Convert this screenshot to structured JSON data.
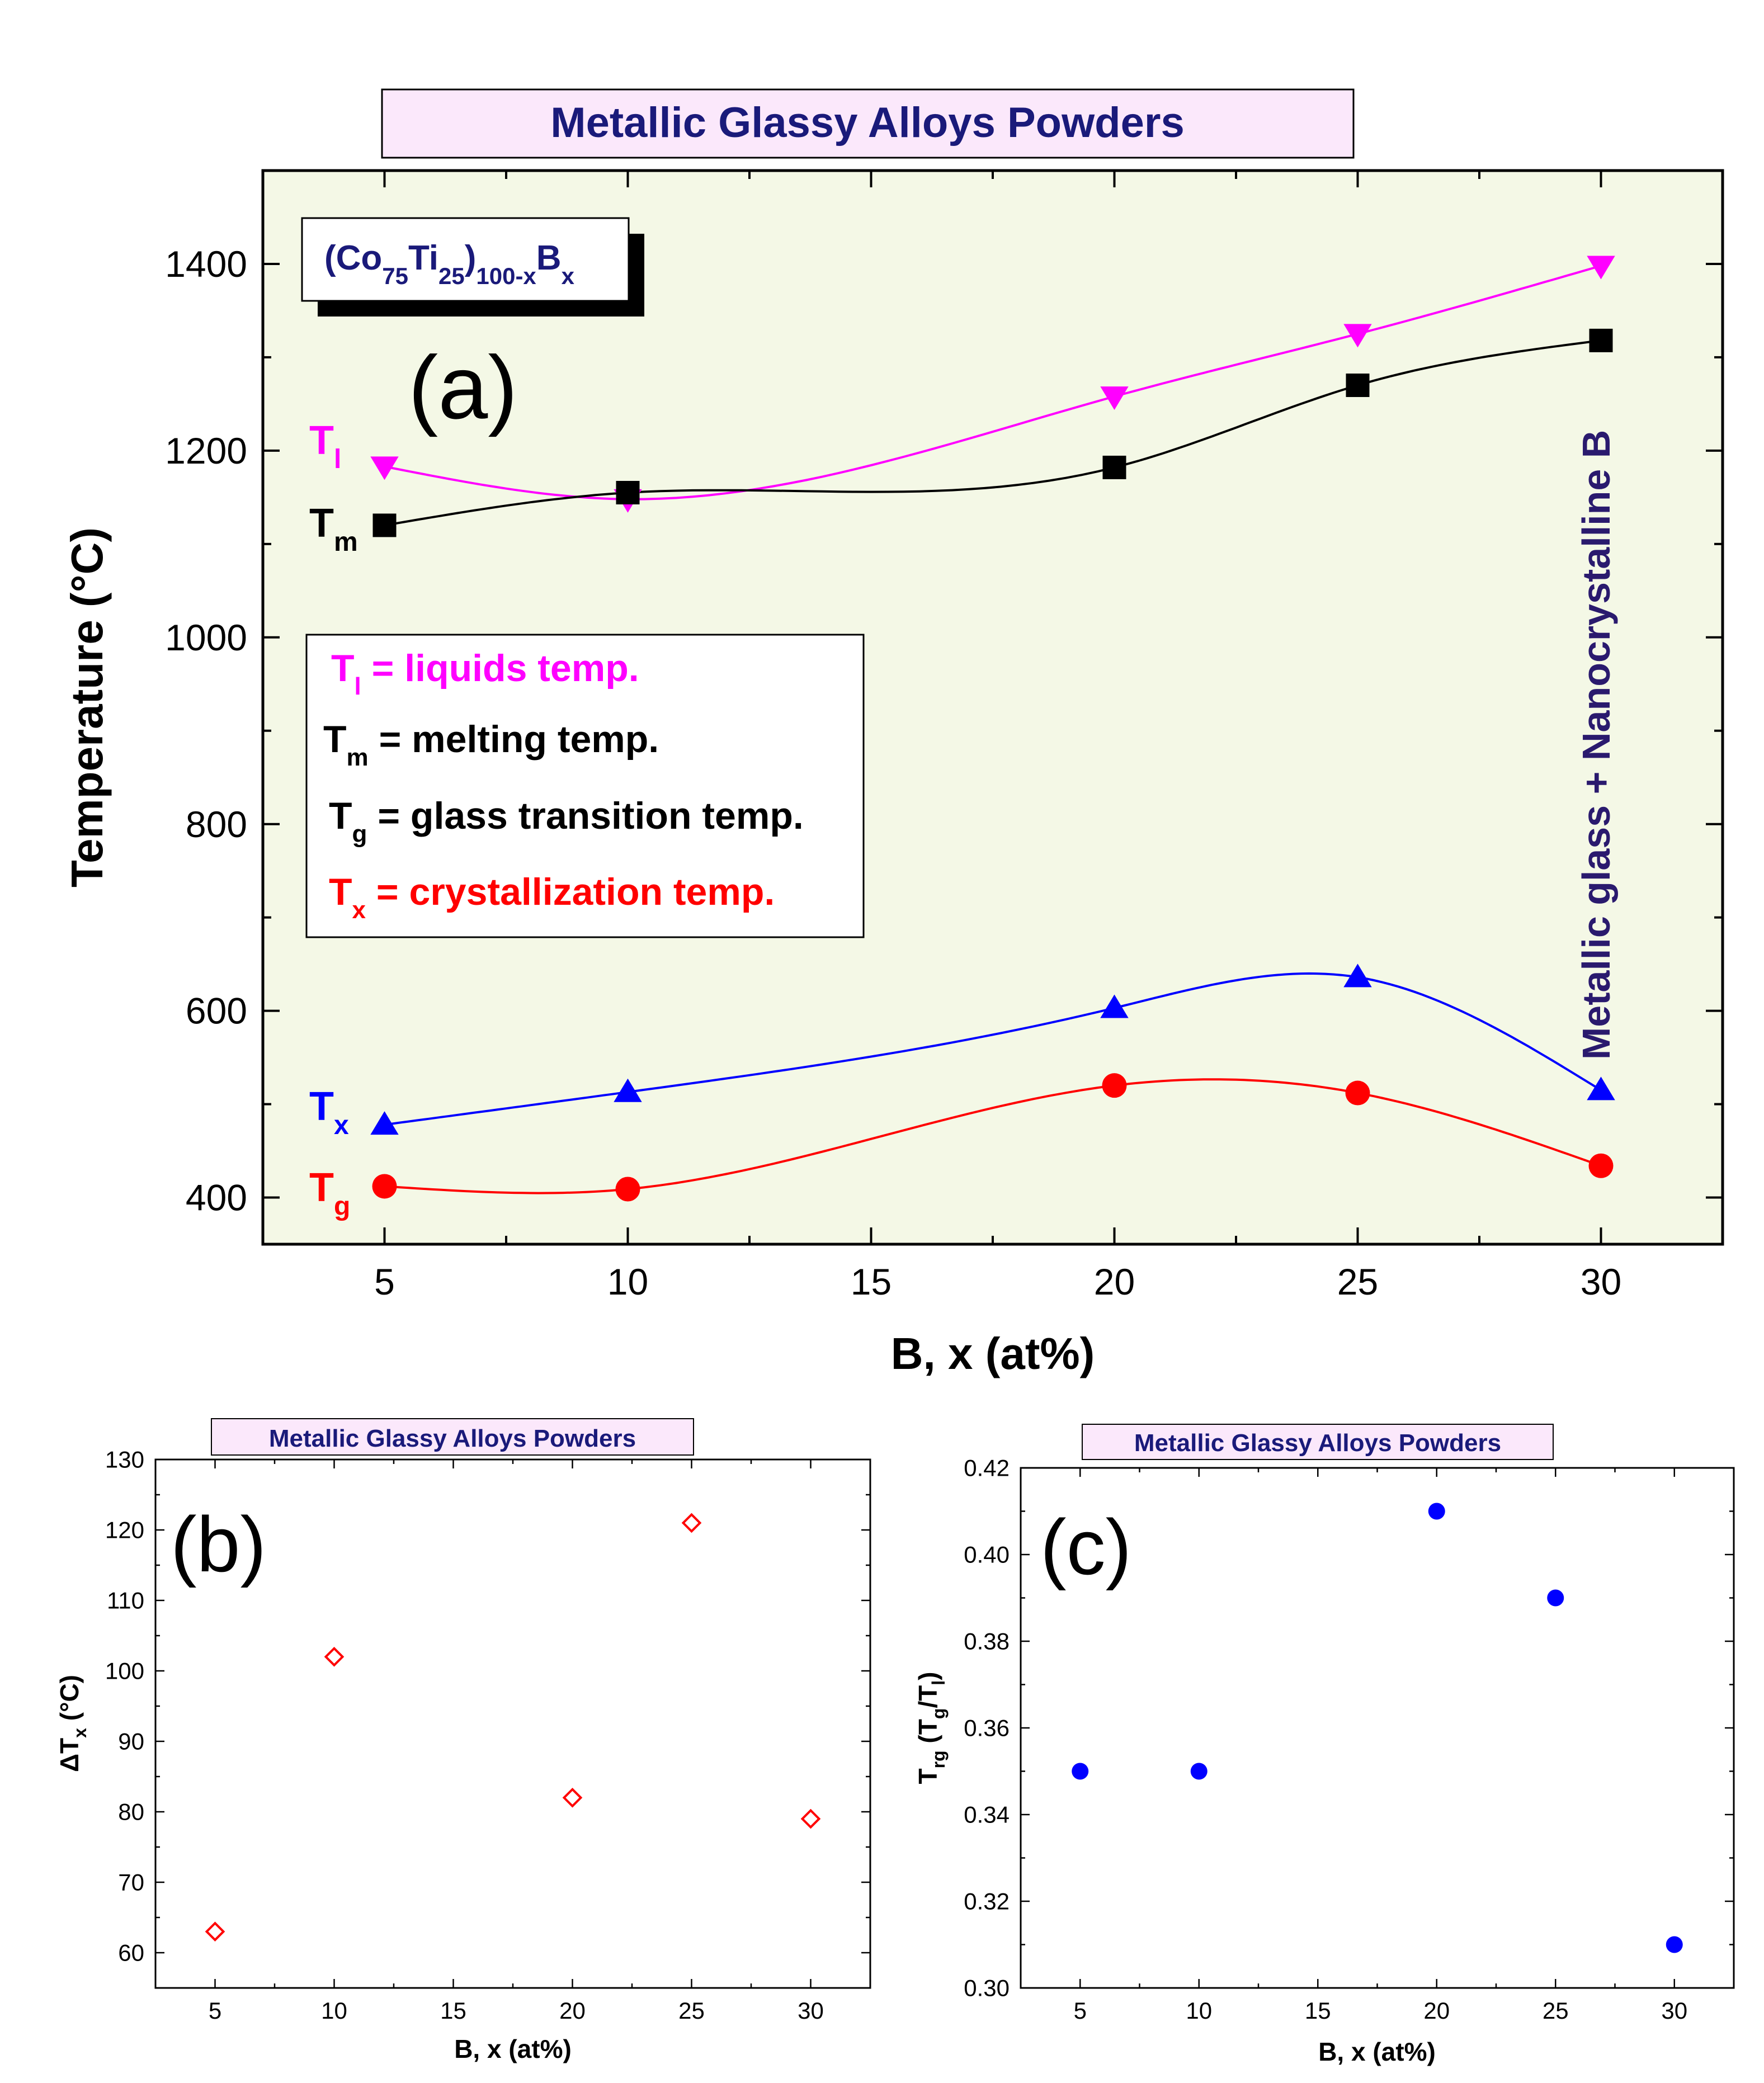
{
  "colors": {
    "plot_bg": "#f4f8e6",
    "title_box_bg": "#fbe8fb",
    "title_text": "#1a1a7a",
    "tl": "#ff00ff",
    "tm": "#000000",
    "tx": "#0000ff",
    "tg": "#ff0000",
    "vertical_label": "#2a1a6e"
  },
  "chart_data": [
    {
      "id": "a",
      "type": "line",
      "title": "Metallic Glassy Alloys Powders",
      "panel_label": "(a)",
      "composition": {
        "pre": "(Co",
        "sub1": "75",
        "mid": "Ti",
        "sub2": "25",
        "close": ")",
        "sub3": "100-x",
        "elem": "B",
        "sub4": "x"
      },
      "xlabel": "B, x (at%)",
      "ylabel": "Temperature (°C)",
      "xlim": [
        2.5,
        32.5
      ],
      "ylim": [
        350,
        1500
      ],
      "xticks": [
        5,
        10,
        15,
        20,
        25,
        30
      ],
      "yticks": [
        400,
        600,
        800,
        1000,
        1200,
        1400
      ],
      "x": [
        5,
        10,
        20,
        25,
        30
      ],
      "series": [
        {
          "name": "Tl",
          "symbol": "T",
          "sub": "l",
          "marker": "triangle-down",
          "color": "#ff00ff",
          "values": [
            1183,
            1148,
            1258,
            1325,
            1398
          ]
        },
        {
          "name": "Tm",
          "symbol": "T",
          "sub": "m",
          "marker": "square",
          "color": "#000000",
          "values": [
            1120,
            1155,
            1182,
            1270,
            1318
          ]
        },
        {
          "name": "Tx",
          "symbol": "T",
          "sub": "x",
          "marker": "triangle-up",
          "color": "#0000ff",
          "values": [
            478,
            513,
            603,
            636,
            515
          ]
        },
        {
          "name": "Tg",
          "symbol": "T",
          "sub": "g",
          "marker": "circle",
          "color": "#ff0000",
          "values": [
            412,
            409,
            520,
            512,
            434
          ]
        }
      ],
      "legend": [
        {
          "sym": "T",
          "sub": "l",
          "text": " = liquids temp.",
          "color": "#ff00ff"
        },
        {
          "sym": "T",
          "sub": "m",
          "text": " = melting temp.",
          "color": "#000000"
        },
        {
          "sym": "T",
          "sub": "g",
          "text": " = glass transition temp.",
          "color": "#000000"
        },
        {
          "sym": "T",
          "sub": "x",
          "text": " = crystallization temp.",
          "color": "#ff0000"
        }
      ],
      "vertical_annotation": "Metallic glass + Nanocrystalline B"
    },
    {
      "id": "b",
      "type": "scatter",
      "title": "Metallic Glassy Alloys Powders",
      "panel_label": "(b)",
      "xlabel": "B, x (at%)",
      "ylabel": {
        "pre": "ΔT",
        "sub": "x",
        "post": " (°C)"
      },
      "xlim": [
        2.5,
        32.5
      ],
      "ylim": [
        55,
        130
      ],
      "xticks": [
        5,
        10,
        15,
        20,
        25,
        30
      ],
      "yticks": [
        60,
        70,
        80,
        90,
        100,
        110,
        120,
        130
      ],
      "marker": "diamond-open",
      "color": "#ff0000",
      "x": [
        5,
        10,
        20,
        25,
        30
      ],
      "values": [
        63,
        102,
        82,
        121,
        79
      ]
    },
    {
      "id": "c",
      "type": "scatter",
      "title": "Metallic Glassy Alloys Powders",
      "panel_label": "(c)",
      "xlabel": "B, x (at%)",
      "ylabel": {
        "pre": "T",
        "sub": "rg",
        "mid": " (T",
        "sub2": "g",
        "mid2": "/T",
        "sub3": "l",
        "post": ")"
      },
      "xlim": [
        2.5,
        32.5
      ],
      "ylim": [
        0.3,
        0.42
      ],
      "xticks": [
        5,
        10,
        15,
        20,
        25,
        30
      ],
      "yticks": [
        0.3,
        0.32,
        0.34,
        0.36,
        0.38,
        0.4,
        0.42
      ],
      "marker": "circle",
      "color": "#0000ff",
      "x": [
        5,
        10,
        20,
        25,
        30
      ],
      "values": [
        0.35,
        0.35,
        0.41,
        0.39,
        0.31
      ]
    }
  ]
}
